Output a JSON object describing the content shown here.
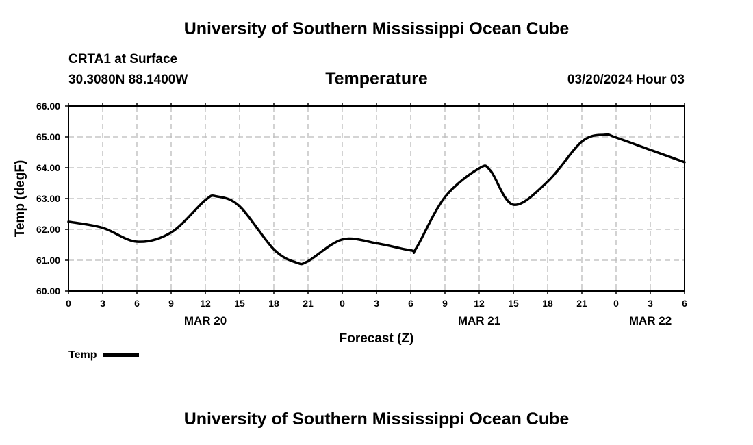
{
  "header": {
    "title": "University of Southern Mississippi Ocean Cube",
    "station": "CRTA1 at Surface",
    "coords": "30.3080N  88.1400W",
    "date": "03/20/2024 Hour 03"
  },
  "footer": {
    "title": "University of Southern Mississippi Ocean Cube"
  },
  "chart_data": {
    "type": "line",
    "title": "Temperature",
    "xlabel": "Forecast (Z)",
    "ylabel": "Temp (degF)",
    "ylim": [
      60,
      66
    ],
    "xlim": [
      0,
      54
    ],
    "yticks": [
      "60.00",
      "61.00",
      "62.00",
      "63.00",
      "64.00",
      "65.00",
      "66.00"
    ],
    "xticks": [
      "0",
      "3",
      "6",
      "9",
      "12",
      "15",
      "18",
      "21",
      "0",
      "3",
      "6",
      "9",
      "12",
      "15",
      "18",
      "21",
      "0",
      "3",
      "6"
    ],
    "day_labels": [
      {
        "label": "MAR 20",
        "hour": 12
      },
      {
        "label": "MAR 21",
        "hour": 36
      },
      {
        "label": "MAR 22",
        "hour": 51
      }
    ],
    "grid": true,
    "legend": "bottom-left",
    "series": [
      {
        "name": "Temp",
        "color": "#000000",
        "x": [
          0,
          3,
          6,
          9,
          12,
          13,
          15,
          18,
          20,
          21,
          24,
          27,
          30,
          30.5,
          33,
          36,
          37,
          39,
          42,
          45,
          47,
          48,
          51,
          54
        ],
        "values": [
          62.25,
          62.05,
          61.6,
          61.9,
          62.95,
          63.07,
          62.75,
          61.35,
          60.92,
          60.97,
          61.67,
          61.55,
          61.32,
          61.4,
          63.05,
          63.98,
          63.9,
          62.8,
          63.55,
          64.85,
          65.07,
          64.98,
          64.58,
          64.18
        ]
      }
    ]
  }
}
